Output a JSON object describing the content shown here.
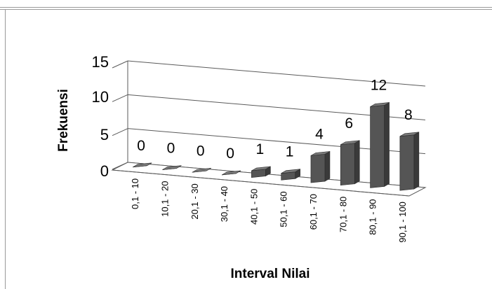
{
  "chart_data": {
    "type": "bar",
    "title": "",
    "xlabel": "Interval Nilai",
    "ylabel": "Frekuensi",
    "categories": [
      "0,1 - 10",
      "10,1 - 20",
      "20,1 - 30",
      "30,1 - 40",
      "40,1 - 50",
      "50,1 - 60",
      "60,1 - 70",
      "70,1 - 80",
      "80,1 - 90",
      "90,1 - 100"
    ],
    "values": [
      0,
      0,
      0,
      0,
      1,
      1,
      4,
      6,
      12,
      8
    ],
    "data_labels": [
      "0",
      "0",
      "0",
      "0",
      "1",
      "1",
      "4",
      "6",
      "12",
      "8"
    ],
    "yticks": [
      "0",
      "5",
      "10",
      "15"
    ],
    "ytick_values": [
      0,
      5,
      10,
      15
    ],
    "ylim": [
      0,
      15
    ],
    "grid": true,
    "legend": "none",
    "style": "3d-column",
    "bar_color": "#555555"
  }
}
